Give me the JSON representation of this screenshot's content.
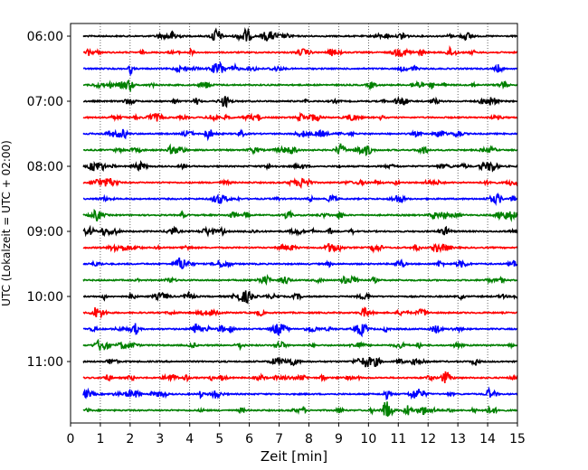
{
  "chart_data": {
    "type": "line",
    "chart_kind": "helicorder",
    "xlabel": "Zeit  [min]",
    "ylabel": "UTC (Lokalzeit = UTC + 02:00)",
    "xlim": [
      0,
      15
    ],
    "x_ticks": [
      "0",
      "1",
      "2",
      "3",
      "4",
      "5",
      "6",
      "7",
      "8",
      "9",
      "10",
      "11",
      "12",
      "13",
      "14",
      "15"
    ],
    "y_ticks": [
      {
        "label": "06:00",
        "row": 0
      },
      {
        "label": "07:00",
        "row": 4
      },
      {
        "label": "08:00",
        "row": 8
      },
      {
        "label": "09:00",
        "row": 12
      },
      {
        "label": "10:00",
        "row": 16
      },
      {
        "label": "11:00",
        "row": 20
      }
    ],
    "grid": "vertical dotted at each minute",
    "trace_colors": [
      "#000000",
      "#ff0000",
      "#0000ff",
      "#008000"
    ],
    "trace_row_count": 24,
    "minutes_per_row": 15
  }
}
